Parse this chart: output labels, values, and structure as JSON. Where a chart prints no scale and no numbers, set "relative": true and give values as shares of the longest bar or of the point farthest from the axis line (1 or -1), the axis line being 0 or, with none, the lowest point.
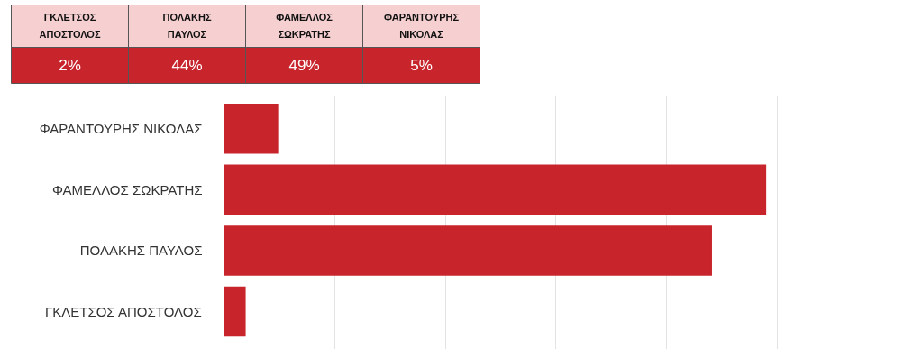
{
  "chart_data": [
    {
      "type": "other",
      "categories": [
        "ΓΚΛΕΤΣΟΣ ΑΠΟΣΤΟΛΟΣ",
        "ΠΟΛΑΚΗΣ ΠΑΥΛΟΣ",
        "ΦΑΜΕΛΛΟΣ ΣΩΚΡΑΤΗΣ",
        "ΦΑΡΑΝΤΟΥΡΗΣ ΝΙΚΟΛΑΣ"
      ],
      "values": [
        2,
        44,
        49,
        5
      ],
      "value_labels": [
        "2%",
        "44%",
        "49%",
        "5%"
      ],
      "color": "#c8242c"
    },
    {
      "type": "bar",
      "orientation": "horizontal",
      "relative": true,
      "categories": [
        "ΦΑΡΑΝΤΟΥΡΗΣ ΝΙΚΟΛΑΣ",
        "ΦΑΜΕΛΛΟΣ ΣΩΚΡΑΤΗΣ",
        "ΠΟΛΑΚΗΣ ΠΑΥΛΟΣ",
        "ΓΚΛΕΤΣΟΣ ΑΠΟΣΤΟΛΟΣ"
      ],
      "values": [
        0.1,
        1,
        0.9,
        0.04
      ],
      "color": "#c8242c",
      "grid": "x",
      "tick_labels": "y"
    }
  ]
}
